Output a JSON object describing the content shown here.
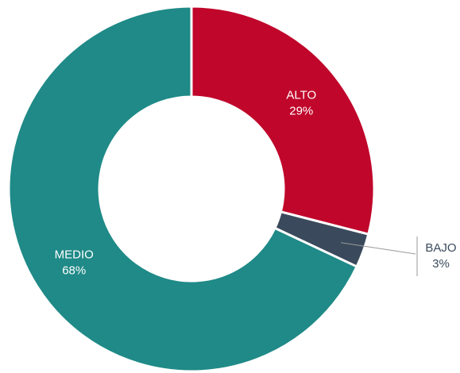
{
  "chart_data": {
    "type": "donut",
    "categories": [
      "ALTO",
      "BAJO",
      "MEDIO"
    ],
    "values": [
      29,
      3,
      68
    ],
    "value_labels": [
      "29%",
      "3%",
      "68%"
    ],
    "colors": [
      "#c0062b",
      "#3a4a5c",
      "#1f8a87"
    ]
  }
}
